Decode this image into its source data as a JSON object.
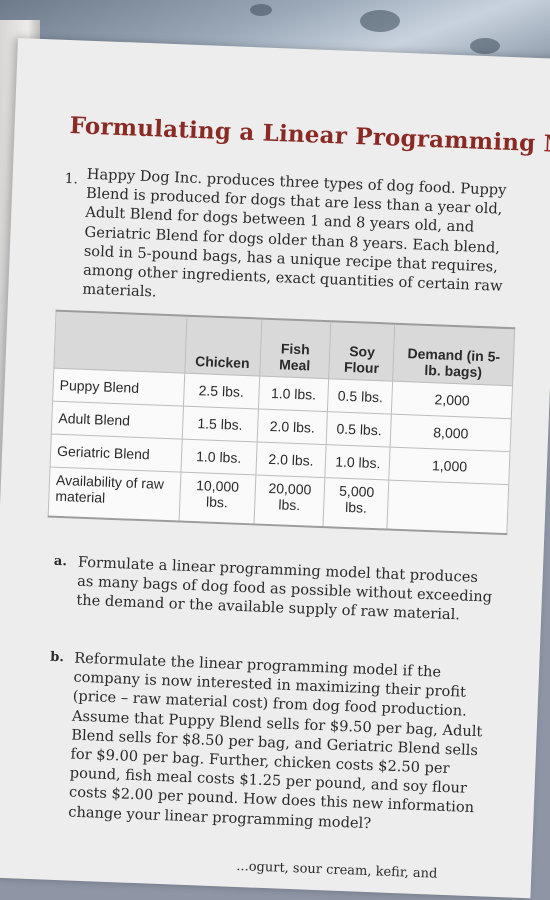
{
  "heading": "Formulating a Linear Programming Mode",
  "problem": {
    "number": "1.",
    "text": "Happy Dog Inc. produces three types of dog food. Puppy Blend is produced for dogs that are less than a year old, Adult Blend for dogs between 1 and 8 years old, and Geriatric Blend for dogs older than 8 years. Each blend, sold in 5-pound bags, has a unique recipe that requires, among other ingredients, exact quantities of certain raw materials."
  },
  "table": {
    "headers": [
      "",
      "Chicken",
      "Fish Meal",
      "Soy Flour",
      "Demand (in 5-lb. bags)"
    ],
    "rows": [
      [
        "Puppy Blend",
        "2.5 lbs.",
        "1.0 lbs.",
        "0.5 lbs.",
        "2,000"
      ],
      [
        "Adult Blend",
        "1.5 lbs.",
        "2.0 lbs.",
        "0.5 lbs.",
        "8,000"
      ],
      [
        "Geriatric Blend",
        "1.0 lbs.",
        "2.0 lbs.",
        "1.0 lbs.",
        "1,000"
      ],
      [
        "Availability of raw material",
        "10,000 lbs.",
        "20,000 lbs.",
        "5,000 lbs.",
        ""
      ]
    ]
  },
  "subparts": [
    {
      "label": "a.",
      "text": "Formulate a linear programming model that produces as many bags of dog food as possible without exceeding the demand or the available supply of raw material."
    },
    {
      "label": "b.",
      "text": "Reformulate the linear programming model if the company is now interested in maximizing their profit (price – raw material cost) from dog food production. Assume that Puppy Blend sells for $9.50 per bag, Adult Blend sells for $8.50 per bag, and Geriatric Blend sells for $9.00 per bag. Further, chicken costs $2.50 per pound, fish meal costs $1.25 per pound, and soy flour costs $2.00 per pound. How does this new information change your linear programming model?"
    }
  ],
  "cutoff_text": "...ogurt, sour cream, kefir, and"
}
